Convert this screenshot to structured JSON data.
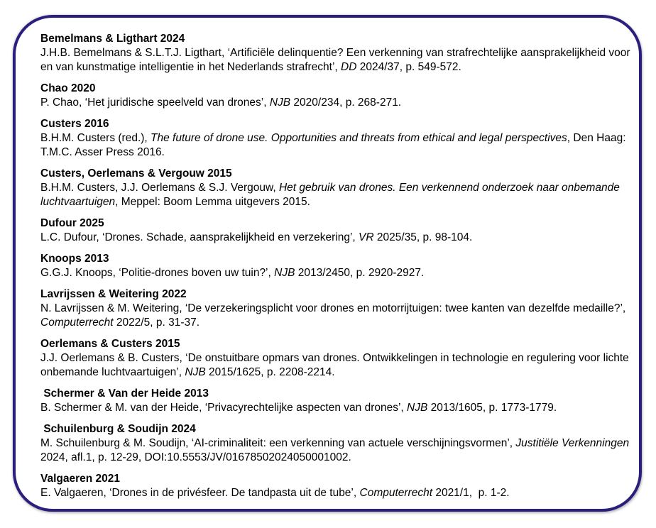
{
  "theme": {
    "border_color": "#2b1f7e",
    "background_color": "#ffffff",
    "text_color": "#000000"
  },
  "bibliography": {
    "entries": [
      {
        "heading": "Bemelmans & Ligthart 2024",
        "segments": [
          {
            "text": "J.H.B. Bemelmans & S.L.T.J. Ligthart, ‘Artificiële delinquentie? Een verkenning van strafrechtelijke aansprakelijkheid voor en van kunstmatige intelligentie in het Nederlands strafrecht’, ",
            "italic": false
          },
          {
            "text": "DD",
            "italic": true
          },
          {
            "text": " 2024/37, p. 549-572.",
            "italic": false
          }
        ]
      },
      {
        "heading": "Chao 2020",
        "segments": [
          {
            "text": "P. Chao, ‘Het juridische speelveld van drones’, ",
            "italic": false
          },
          {
            "text": "NJB",
            "italic": true
          },
          {
            "text": " 2020/234, p. 268-271.",
            "italic": false
          }
        ]
      },
      {
        "heading": "Custers 2016",
        "segments": [
          {
            "text": "B.H.M. Custers (red.), ",
            "italic": false
          },
          {
            "text": "The future of drone use. Opportunities and threats from ethical and legal perspectives",
            "italic": true
          },
          {
            "text": ", Den Haag: T.M.C. Asser Press 2016.",
            "italic": false
          }
        ]
      },
      {
        "heading": "Custers, Oerlemans & Vergouw 2015",
        "segments": [
          {
            "text": "B.H.M. Custers, J.J. Oerlemans & S.J. Vergouw, ",
            "italic": false
          },
          {
            "text": "Het gebruik van drones. Een verkennend onderzoek naar onbemande luchtvaartuigen",
            "italic": true
          },
          {
            "text": ", Meppel: Boom Lemma uitgevers 2015.",
            "italic": false
          }
        ]
      },
      {
        "heading": "Dufour 2025",
        "segments": [
          {
            "text": "L.C. Dufour, ‘Drones. Schade, aansprakelijkheid en verzekering’, ",
            "italic": false
          },
          {
            "text": "VR",
            "italic": true
          },
          {
            "text": " 2025/35, p. 98-104.",
            "italic": false
          }
        ]
      },
      {
        "heading": "Knoops 2013",
        "segments": [
          {
            "text": "G.G.J. Knoops, ‘Politie-drones boven uw tuin?’, ",
            "italic": false
          },
          {
            "text": "NJB",
            "italic": true
          },
          {
            "text": " 2013/2450, p. 2920-2927.",
            "italic": false
          }
        ]
      },
      {
        "heading": "Lavrijssen & Weitering 2022",
        "segments": [
          {
            "text": "N. Lavrijssen & M. Weitering, ‘De verzekeringsplicht voor drones en motorrijtuigen: twee kanten van dezelfde medaille?’, ",
            "italic": false
          },
          {
            "text": "Computerrecht",
            "italic": true
          },
          {
            "text": " 2022/5, p. 31-37.",
            "italic": false
          }
        ]
      },
      {
        "heading": "Oerlemans & Custers 2015",
        "segments": [
          {
            "text": "J.J. Oerlemans & B. Custers, ‘De onstuitbare opmars van drones. Ontwikkelingen in technologie en regulering voor lichte onbemande luchtvaartuigen’, ",
            "italic": false
          },
          {
            "text": "NJB",
            "italic": true
          },
          {
            "text": " 2015/1625, p. 2208-2214.",
            "italic": false
          }
        ]
      },
      {
        "heading": " Schermer & Van der Heide 2013",
        "segments": [
          {
            "text": "B. Schermer & M. van der Heide, ‘Privacyrechtelijke aspecten van drones’, ",
            "italic": false
          },
          {
            "text": "NJB",
            "italic": true
          },
          {
            "text": " 2013/1605, p. 1773-1779.",
            "italic": false
          }
        ]
      },
      {
        "heading": " Schuilenburg & Soudijn 2024",
        "segments": [
          {
            "text": "M. Schuilenburg & M. Soudijn, ‘AI-criminaliteit: een verkenning van actuele verschijningsvormen’, ",
            "italic": false
          },
          {
            "text": "Justitiële Verkenningen",
            "italic": true
          },
          {
            "text": " 2024, afl.1, p. 12-29, DOI:10.5553/JV/01678502024050001002.",
            "italic": false
          }
        ]
      },
      {
        "heading": "Valgaeren 2021",
        "segments": [
          {
            "text": "E. Valgaeren, ‘Drones in de privésfeer. De tandpasta uit de tube’, ",
            "italic": false
          },
          {
            "text": "Computerrecht",
            "italic": true
          },
          {
            "text": " 2021/1,  p. 1-2.",
            "italic": false
          }
        ]
      }
    ]
  }
}
